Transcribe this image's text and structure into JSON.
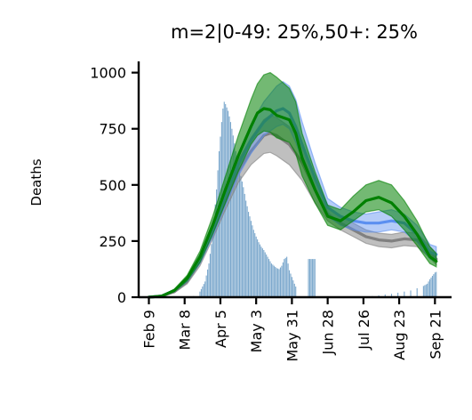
{
  "chart_data": {
    "type": "line",
    "title": "m=2|0-49: 25%,50+: 25%",
    "xlabel": "",
    "ylabel": "Deaths",
    "ylim": [
      0,
      1050
    ],
    "x_range_days": [
      -8,
      237
    ],
    "yticks": [
      {
        "value": 0,
        "label": "0"
      },
      {
        "value": 250,
        "label": "250"
      },
      {
        "value": 500,
        "label": "500"
      },
      {
        "value": 750,
        "label": "750"
      },
      {
        "value": 1000,
        "label": "1000"
      }
    ],
    "xticks": [
      {
        "day": 0,
        "label": "Feb 9"
      },
      {
        "day": 28,
        "label": "Mar 8"
      },
      {
        "day": 56,
        "label": "Apr 5"
      },
      {
        "day": 84,
        "label": "May 3"
      },
      {
        "day": 112,
        "label": "May 31"
      },
      {
        "day": 140,
        "label": "Jun 28"
      },
      {
        "day": 168,
        "label": "Jul 26"
      },
      {
        "day": 196,
        "label": "Aug 23"
      },
      {
        "day": 224,
        "label": "Sep 21"
      }
    ],
    "grid": false,
    "observed_deaths": {
      "color": "#7aa7cc",
      "points": [
        [
          35,
          5
        ],
        [
          40,
          25
        ],
        [
          44,
          70
        ],
        [
          47,
          150
        ],
        [
          50,
          280
        ],
        [
          53,
          480
        ],
        [
          55,
          650
        ],
        [
          57,
          780
        ],
        [
          58,
          840
        ],
        [
          59,
          870
        ],
        [
          60,
          860
        ],
        [
          62,
          830
        ],
        [
          64,
          780
        ],
        [
          66,
          720
        ],
        [
          68,
          650
        ],
        [
          70,
          590
        ],
        [
          72,
          540
        ],
        [
          74,
          490
        ],
        [
          76,
          430
        ],
        [
          78,
          380
        ],
        [
          80,
          340
        ],
        [
          82,
          300
        ],
        [
          84,
          270
        ],
        [
          86,
          245
        ],
        [
          88,
          225
        ],
        [
          90,
          210
        ],
        [
          92,
          190
        ],
        [
          94,
          170
        ],
        [
          96,
          150
        ],
        [
          98,
          140
        ],
        [
          100,
          130
        ],
        [
          102,
          125
        ],
        [
          104,
          140
        ],
        [
          106,
          170
        ],
        [
          108,
          180
        ],
        [
          110,
          120
        ],
        [
          112,
          90
        ],
        [
          114,
          60
        ],
        [
          116,
          35
        ],
        [
          125,
          170
        ],
        [
          128,
          170
        ],
        [
          131,
          170
        ],
        [
          175,
          5
        ],
        [
          180,
          8
        ],
        [
          185,
          12
        ],
        [
          190,
          15
        ],
        [
          195,
          20
        ],
        [
          200,
          25
        ],
        [
          205,
          30
        ],
        [
          210,
          40
        ],
        [
          215,
          50
        ],
        [
          218,
          60
        ],
        [
          220,
          80
        ],
        [
          222,
          95
        ],
        [
          224,
          110
        ],
        [
          226,
          115
        ]
      ]
    },
    "series": [
      {
        "color": "#808080",
        "band_opacity": 0.5,
        "points": [
          [
            0,
            0
          ],
          [
            10,
            5
          ],
          [
            20,
            25
          ],
          [
            30,
            70
          ],
          [
            40,
            160
          ],
          [
            50,
            290
          ],
          [
            60,
            430
          ],
          [
            70,
            560
          ],
          [
            80,
            650
          ],
          [
            90,
            720
          ],
          [
            95,
            730
          ],
          [
            100,
            720
          ],
          [
            110,
            680
          ],
          [
            120,
            600
          ],
          [
            130,
            480
          ],
          [
            140,
            370
          ],
          [
            150,
            330
          ],
          [
            160,
            300
          ],
          [
            170,
            270
          ],
          [
            180,
            255
          ],
          [
            190,
            250
          ],
          [
            200,
            260
          ],
          [
            210,
            255
          ],
          [
            220,
            200
          ],
          [
            225,
            170
          ]
        ],
        "lower": [
          [
            0,
            0
          ],
          [
            10,
            4
          ],
          [
            20,
            20
          ],
          [
            30,
            60
          ],
          [
            40,
            140
          ],
          [
            50,
            260
          ],
          [
            60,
            390
          ],
          [
            70,
            510
          ],
          [
            80,
            590
          ],
          [
            90,
            640
          ],
          [
            95,
            645
          ],
          [
            100,
            630
          ],
          [
            110,
            590
          ],
          [
            120,
            520
          ],
          [
            130,
            420
          ],
          [
            140,
            340
          ],
          [
            150,
            300
          ],
          [
            160,
            270
          ],
          [
            170,
            240
          ],
          [
            180,
            225
          ],
          [
            190,
            220
          ],
          [
            200,
            230
          ],
          [
            210,
            225
          ],
          [
            220,
            175
          ],
          [
            225,
            145
          ]
        ],
        "upper": [
          [
            0,
            0
          ],
          [
            10,
            6
          ],
          [
            20,
            30
          ],
          [
            30,
            80
          ],
          [
            40,
            180
          ],
          [
            50,
            320
          ],
          [
            60,
            470
          ],
          [
            70,
            610
          ],
          [
            80,
            710
          ],
          [
            90,
            790
          ],
          [
            95,
            810
          ],
          [
            100,
            800
          ],
          [
            110,
            760
          ],
          [
            120,
            680
          ],
          [
            130,
            540
          ],
          [
            140,
            400
          ],
          [
            150,
            360
          ],
          [
            160,
            330
          ],
          [
            170,
            300
          ],
          [
            180,
            285
          ],
          [
            190,
            280
          ],
          [
            200,
            290
          ],
          [
            210,
            285
          ],
          [
            220,
            225
          ],
          [
            225,
            195
          ]
        ]
      },
      {
        "color": "#5b8ff0",
        "band_opacity": 0.45,
        "points": [
          [
            0,
            0
          ],
          [
            10,
            5
          ],
          [
            20,
            30
          ],
          [
            30,
            80
          ],
          [
            40,
            170
          ],
          [
            50,
            300
          ],
          [
            60,
            450
          ],
          [
            70,
            590
          ],
          [
            80,
            700
          ],
          [
            90,
            780
          ],
          [
            100,
            830
          ],
          [
            105,
            840
          ],
          [
            110,
            820
          ],
          [
            115,
            760
          ],
          [
            120,
            680
          ],
          [
            130,
            530
          ],
          [
            140,
            400
          ],
          [
            150,
            360
          ],
          [
            160,
            340
          ],
          [
            170,
            330
          ],
          [
            180,
            330
          ],
          [
            190,
            340
          ],
          [
            200,
            330
          ],
          [
            210,
            280
          ],
          [
            220,
            200
          ],
          [
            225,
            190
          ]
        ],
        "lower": [
          [
            0,
            0
          ],
          [
            10,
            4
          ],
          [
            20,
            25
          ],
          [
            30,
            70
          ],
          [
            40,
            150
          ],
          [
            50,
            270
          ],
          [
            60,
            410
          ],
          [
            70,
            540
          ],
          [
            80,
            640
          ],
          [
            90,
            720
          ],
          [
            100,
            760
          ],
          [
            105,
            770
          ],
          [
            110,
            750
          ],
          [
            115,
            690
          ],
          [
            120,
            610
          ],
          [
            130,
            470
          ],
          [
            140,
            360
          ],
          [
            150,
            320
          ],
          [
            160,
            300
          ],
          [
            170,
            290
          ],
          [
            180,
            290
          ],
          [
            190,
            300
          ],
          [
            200,
            290
          ],
          [
            210,
            245
          ],
          [
            220,
            170
          ],
          [
            225,
            160
          ]
        ],
        "upper": [
          [
            0,
            0
          ],
          [
            10,
            6
          ],
          [
            20,
            35
          ],
          [
            30,
            90
          ],
          [
            40,
            190
          ],
          [
            50,
            330
          ],
          [
            60,
            490
          ],
          [
            70,
            640
          ],
          [
            80,
            770
          ],
          [
            90,
            870
          ],
          [
            100,
            940
          ],
          [
            105,
            960
          ],
          [
            110,
            940
          ],
          [
            115,
            880
          ],
          [
            120,
            780
          ],
          [
            130,
            600
          ],
          [
            140,
            440
          ],
          [
            150,
            400
          ],
          [
            160,
            380
          ],
          [
            170,
            370
          ],
          [
            180,
            380
          ],
          [
            190,
            390
          ],
          [
            200,
            370
          ],
          [
            210,
            320
          ],
          [
            220,
            235
          ],
          [
            225,
            225
          ]
        ]
      },
      {
        "color": "#008000",
        "band_opacity": 0.55,
        "points": [
          [
            0,
            0
          ],
          [
            10,
            5
          ],
          [
            20,
            30
          ],
          [
            30,
            85
          ],
          [
            40,
            180
          ],
          [
            50,
            320
          ],
          [
            60,
            480
          ],
          [
            70,
            630
          ],
          [
            80,
            760
          ],
          [
            85,
            820
          ],
          [
            90,
            840
          ],
          [
            95,
            835
          ],
          [
            100,
            810
          ],
          [
            110,
            790
          ],
          [
            115,
            730
          ],
          [
            120,
            620
          ],
          [
            130,
            480
          ],
          [
            140,
            360
          ],
          [
            150,
            340
          ],
          [
            160,
            380
          ],
          [
            170,
            430
          ],
          [
            180,
            445
          ],
          [
            190,
            420
          ],
          [
            200,
            360
          ],
          [
            210,
            280
          ],
          [
            220,
            180
          ],
          [
            225,
            160
          ]
        ],
        "lower": [
          [
            0,
            0
          ],
          [
            10,
            4
          ],
          [
            20,
            25
          ],
          [
            30,
            72
          ],
          [
            40,
            155
          ],
          [
            50,
            280
          ],
          [
            60,
            420
          ],
          [
            70,
            560
          ],
          [
            80,
            680
          ],
          [
            85,
            720
          ],
          [
            90,
            740
          ],
          [
            95,
            735
          ],
          [
            100,
            710
          ],
          [
            110,
            690
          ],
          [
            115,
            640
          ],
          [
            120,
            540
          ],
          [
            130,
            420
          ],
          [
            140,
            320
          ],
          [
            150,
            300
          ],
          [
            160,
            340
          ],
          [
            170,
            380
          ],
          [
            180,
            390
          ],
          [
            190,
            360
          ],
          [
            200,
            300
          ],
          [
            210,
            230
          ],
          [
            220,
            150
          ],
          [
            225,
            135
          ]
        ],
        "upper": [
          [
            0,
            0
          ],
          [
            10,
            6
          ],
          [
            20,
            36
          ],
          [
            30,
            98
          ],
          [
            40,
            205
          ],
          [
            50,
            360
          ],
          [
            60,
            540
          ],
          [
            70,
            720
          ],
          [
            80,
            880
          ],
          [
            85,
            950
          ],
          [
            90,
            990
          ],
          [
            95,
            1000
          ],
          [
            100,
            980
          ],
          [
            110,
            930
          ],
          [
            115,
            870
          ],
          [
            120,
            730
          ],
          [
            130,
            560
          ],
          [
            140,
            410
          ],
          [
            150,
            390
          ],
          [
            160,
            450
          ],
          [
            170,
            500
          ],
          [
            180,
            520
          ],
          [
            190,
            500
          ],
          [
            200,
            430
          ],
          [
            210,
            340
          ],
          [
            220,
            225
          ],
          [
            225,
            195
          ]
        ]
      }
    ]
  }
}
